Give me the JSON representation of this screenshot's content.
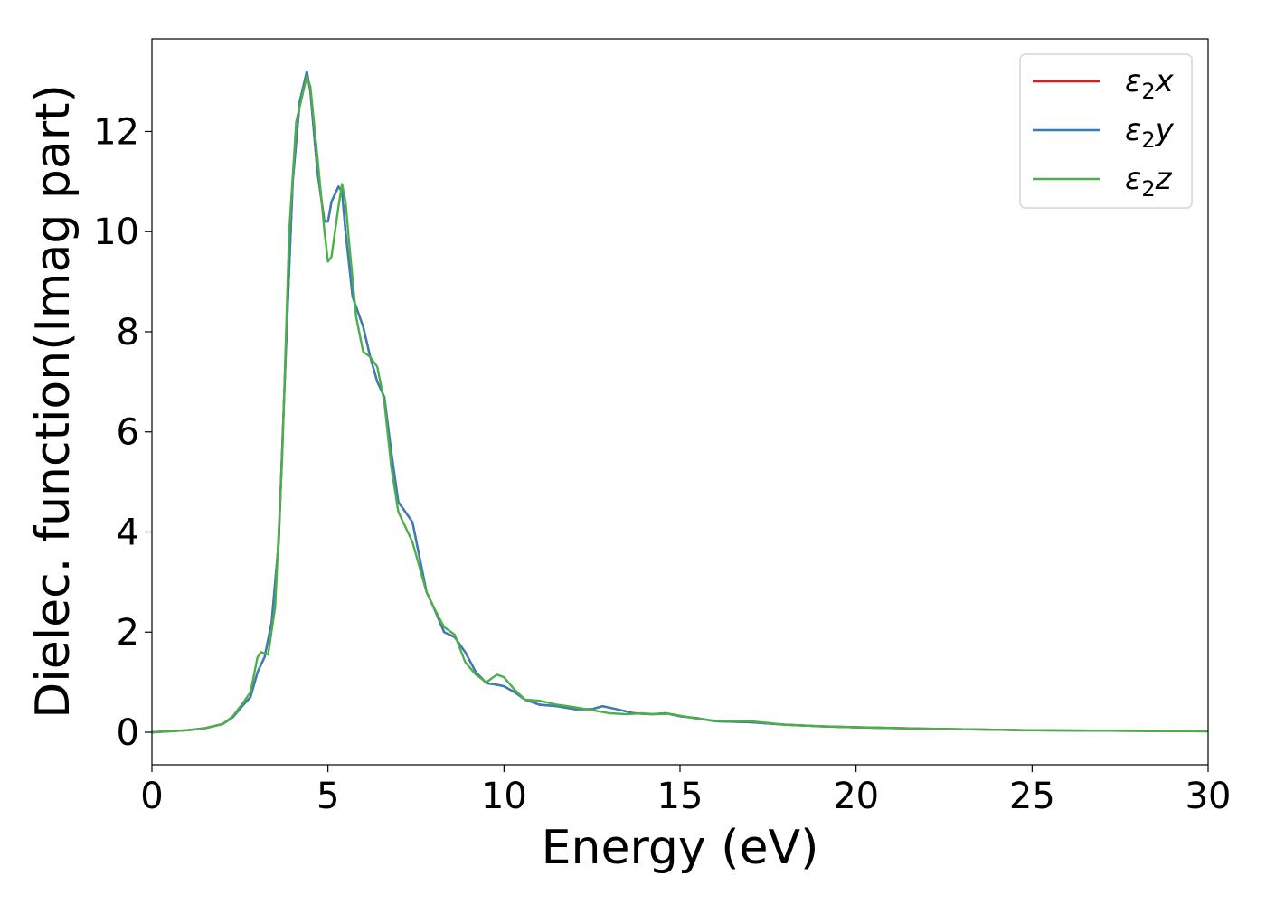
{
  "chart_data": {
    "type": "line",
    "title": "",
    "xlabel": "Energy (eV)",
    "ylabel": "Dielec. function(Imag part)",
    "xlim": [
      0,
      30
    ],
    "ylim": [
      -0.65,
      13.85
    ],
    "xticks": [
      0,
      5,
      10,
      15,
      20,
      25,
      30
    ],
    "yticks": [
      0,
      2,
      4,
      6,
      8,
      10,
      12
    ],
    "grid": false,
    "legend_position": "top-right",
    "series": [
      {
        "name": "ε₂x",
        "legend_base": "ε",
        "legend_sub": "2",
        "legend_suffix": "x",
        "color": "#e41a1c",
        "points": [
          [
            0,
            0
          ],
          [
            1,
            0.04
          ],
          [
            1.5,
            0.08
          ],
          [
            2,
            0.16
          ],
          [
            2.3,
            0.3
          ],
          [
            2.6,
            0.55
          ],
          [
            2.8,
            0.7
          ],
          [
            3.0,
            1.2
          ],
          [
            3.2,
            1.5
          ],
          [
            3.4,
            2.2
          ],
          [
            3.6,
            3.8
          ],
          [
            3.8,
            7.5
          ],
          [
            4.0,
            11.0
          ],
          [
            4.2,
            12.6
          ],
          [
            4.4,
            13.2
          ],
          [
            4.5,
            12.8
          ],
          [
            4.7,
            11.2
          ],
          [
            4.9,
            10.2
          ],
          [
            5.0,
            10.2
          ],
          [
            5.1,
            10.6
          ],
          [
            5.3,
            10.9
          ],
          [
            5.4,
            10.8
          ],
          [
            5.5,
            10.0
          ],
          [
            5.7,
            8.7
          ],
          [
            6.0,
            8.1
          ],
          [
            6.2,
            7.5
          ],
          [
            6.4,
            7.0
          ],
          [
            6.6,
            6.7
          ],
          [
            6.8,
            5.6
          ],
          [
            7.0,
            4.6
          ],
          [
            7.2,
            4.4
          ],
          [
            7.4,
            4.2
          ],
          [
            7.6,
            3.5
          ],
          [
            7.8,
            2.8
          ],
          [
            8.0,
            2.5
          ],
          [
            8.3,
            2.0
          ],
          [
            8.6,
            1.9
          ],
          [
            8.9,
            1.6
          ],
          [
            9.2,
            1.2
          ],
          [
            9.5,
            0.98
          ],
          [
            9.8,
            0.95
          ],
          [
            10.0,
            0.92
          ],
          [
            10.3,
            0.8
          ],
          [
            10.6,
            0.65
          ],
          [
            11.0,
            0.55
          ],
          [
            11.5,
            0.52
          ],
          [
            12.0,
            0.46
          ],
          [
            12.5,
            0.46
          ],
          [
            12.8,
            0.52
          ],
          [
            13.2,
            0.46
          ],
          [
            13.7,
            0.38
          ],
          [
            14.2,
            0.36
          ],
          [
            14.6,
            0.38
          ],
          [
            15.0,
            0.32
          ],
          [
            15.5,
            0.28
          ],
          [
            16.0,
            0.22
          ],
          [
            17.0,
            0.2
          ],
          [
            18.0,
            0.15
          ],
          [
            19.0,
            0.12
          ],
          [
            20.0,
            0.1
          ],
          [
            22.0,
            0.07
          ],
          [
            25.0,
            0.04
          ],
          [
            30.0,
            0.02
          ]
        ]
      },
      {
        "name": "ε₂y",
        "legend_base": "ε",
        "legend_sub": "2",
        "legend_suffix": "y",
        "color": "#377eb8",
        "points": [
          [
            0,
            0
          ],
          [
            1,
            0.04
          ],
          [
            1.5,
            0.08
          ],
          [
            2,
            0.16
          ],
          [
            2.3,
            0.3
          ],
          [
            2.6,
            0.55
          ],
          [
            2.8,
            0.7
          ],
          [
            3.0,
            1.2
          ],
          [
            3.2,
            1.5
          ],
          [
            3.4,
            2.2
          ],
          [
            3.6,
            3.8
          ],
          [
            3.8,
            7.5
          ],
          [
            4.0,
            11.0
          ],
          [
            4.2,
            12.6
          ],
          [
            4.4,
            13.2
          ],
          [
            4.5,
            12.8
          ],
          [
            4.7,
            11.2
          ],
          [
            4.9,
            10.2
          ],
          [
            5.0,
            10.2
          ],
          [
            5.1,
            10.6
          ],
          [
            5.3,
            10.9
          ],
          [
            5.4,
            10.8
          ],
          [
            5.5,
            10.0
          ],
          [
            5.7,
            8.7
          ],
          [
            6.0,
            8.1
          ],
          [
            6.2,
            7.5
          ],
          [
            6.4,
            7.0
          ],
          [
            6.6,
            6.7
          ],
          [
            6.8,
            5.6
          ],
          [
            7.0,
            4.6
          ],
          [
            7.2,
            4.4
          ],
          [
            7.4,
            4.2
          ],
          [
            7.6,
            3.5
          ],
          [
            7.8,
            2.8
          ],
          [
            8.0,
            2.5
          ],
          [
            8.3,
            2.0
          ],
          [
            8.6,
            1.9
          ],
          [
            8.9,
            1.6
          ],
          [
            9.2,
            1.2
          ],
          [
            9.5,
            0.98
          ],
          [
            9.8,
            0.95
          ],
          [
            10.0,
            0.92
          ],
          [
            10.3,
            0.8
          ],
          [
            10.6,
            0.65
          ],
          [
            11.0,
            0.55
          ],
          [
            11.5,
            0.52
          ],
          [
            12.0,
            0.46
          ],
          [
            12.5,
            0.46
          ],
          [
            12.8,
            0.52
          ],
          [
            13.2,
            0.46
          ],
          [
            13.7,
            0.38
          ],
          [
            14.2,
            0.36
          ],
          [
            14.6,
            0.38
          ],
          [
            15.0,
            0.32
          ],
          [
            15.5,
            0.28
          ],
          [
            16.0,
            0.22
          ],
          [
            17.0,
            0.2
          ],
          [
            18.0,
            0.15
          ],
          [
            19.0,
            0.12
          ],
          [
            20.0,
            0.1
          ],
          [
            22.0,
            0.07
          ],
          [
            25.0,
            0.04
          ],
          [
            30.0,
            0.02
          ]
        ]
      },
      {
        "name": "ε₂z",
        "legend_base": "ε",
        "legend_sub": "2",
        "legend_suffix": "z",
        "color": "#4daf4a",
        "points": [
          [
            0,
            0
          ],
          [
            1,
            0.04
          ],
          [
            1.5,
            0.08
          ],
          [
            2,
            0.16
          ],
          [
            2.3,
            0.32
          ],
          [
            2.6,
            0.6
          ],
          [
            2.8,
            0.8
          ],
          [
            3.0,
            1.5
          ],
          [
            3.1,
            1.6
          ],
          [
            3.3,
            1.55
          ],
          [
            3.5,
            2.5
          ],
          [
            3.7,
            5.5
          ],
          [
            3.9,
            10.0
          ],
          [
            4.1,
            12.2
          ],
          [
            4.3,
            12.8
          ],
          [
            4.4,
            13.1
          ],
          [
            4.5,
            12.9
          ],
          [
            4.7,
            11.5
          ],
          [
            4.9,
            10.0
          ],
          [
            5.0,
            9.4
          ],
          [
            5.1,
            9.5
          ],
          [
            5.3,
            10.5
          ],
          [
            5.4,
            10.95
          ],
          [
            5.5,
            10.6
          ],
          [
            5.6,
            9.8
          ],
          [
            5.8,
            8.3
          ],
          [
            6.0,
            7.6
          ],
          [
            6.2,
            7.5
          ],
          [
            6.4,
            7.3
          ],
          [
            6.6,
            6.6
          ],
          [
            6.8,
            5.3
          ],
          [
            7.0,
            4.4
          ],
          [
            7.2,
            4.1
          ],
          [
            7.4,
            3.8
          ],
          [
            7.6,
            3.3
          ],
          [
            7.8,
            2.8
          ],
          [
            8.0,
            2.5
          ],
          [
            8.3,
            2.1
          ],
          [
            8.6,
            1.95
          ],
          [
            8.9,
            1.4
          ],
          [
            9.2,
            1.15
          ],
          [
            9.5,
            1.0
          ],
          [
            9.8,
            1.15
          ],
          [
            10.0,
            1.1
          ],
          [
            10.3,
            0.85
          ],
          [
            10.6,
            0.65
          ],
          [
            11.0,
            0.63
          ],
          [
            11.5,
            0.55
          ],
          [
            12.0,
            0.5
          ],
          [
            12.5,
            0.44
          ],
          [
            13.0,
            0.38
          ],
          [
            13.5,
            0.36
          ],
          [
            13.9,
            0.38
          ],
          [
            14.3,
            0.36
          ],
          [
            14.7,
            0.37
          ],
          [
            15.0,
            0.33
          ],
          [
            15.5,
            0.27
          ],
          [
            16.0,
            0.23
          ],
          [
            17.0,
            0.22
          ],
          [
            18.0,
            0.15
          ],
          [
            19.0,
            0.12
          ],
          [
            20.0,
            0.1
          ],
          [
            22.0,
            0.07
          ],
          [
            25.0,
            0.04
          ],
          [
            30.0,
            0.02
          ]
        ]
      }
    ]
  }
}
